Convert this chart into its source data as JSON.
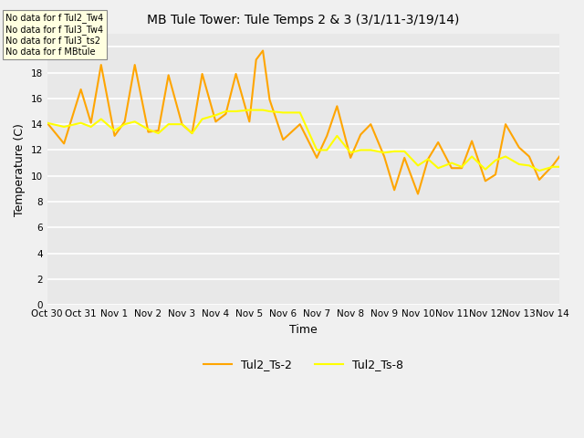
{
  "title": "MB Tule Tower: Tule Temps 2 & 3 (3/1/11-3/19/14)",
  "xlabel": "Time",
  "ylabel": "Temperature (C)",
  "fig_bg_color": "#f0f0f0",
  "plot_bg_color": "#e8e8e8",
  "line1_color": "#FFA500",
  "line2_color": "#FFFF00",
  "ylim": [
    0,
    21
  ],
  "yticks": [
    0,
    2,
    4,
    6,
    8,
    10,
    12,
    14,
    16,
    18,
    20
  ],
  "xtick_labels": [
    "Oct 30",
    "Oct 31",
    "Nov 1",
    "Nov 2",
    "Nov 3",
    "Nov 4",
    "Nov 5",
    "Nov 6",
    "Nov 7",
    "Nov 8",
    "Nov 9",
    "Nov 10",
    "Nov 11",
    "Nov 12",
    "Nov 13",
    "Nov 14"
  ],
  "legend_labels": [
    "Tul2_Ts-2",
    "Tul2_Ts-8"
  ],
  "annotations": [
    "No data for f Tul2_Tw4",
    "No data for f Tul3_Tw4",
    "No data for f Tul3_ts2",
    "No data for f MBtule"
  ],
  "ts2_x": [
    0,
    0.5,
    1,
    1.3,
    1.6,
    2,
    2.3,
    2.6,
    3,
    3.3,
    3.6,
    4,
    4.3,
    4.6,
    5,
    5.3,
    5.6,
    6,
    6.2,
    6.4,
    6.6,
    7,
    7.5,
    8,
    8.3,
    8.6,
    9,
    9.3,
    9.6,
    10,
    10.3,
    10.6,
    11,
    11.3,
    11.6,
    12,
    12.3,
    12.6,
    13,
    13.3,
    13.6,
    14,
    14.3,
    14.6,
    15,
    15.2
  ],
  "ts2_y": [
    14.1,
    12.5,
    16.7,
    14.1,
    18.6,
    13.1,
    14.2,
    18.6,
    13.4,
    13.5,
    17.8,
    14.0,
    13.3,
    17.9,
    14.2,
    14.8,
    17.9,
    14.2,
    19.0,
    19.7,
    15.9,
    12.8,
    14.0,
    11.4,
    13.1,
    15.4,
    11.4,
    13.2,
    14.0,
    11.5,
    8.9,
    11.4,
    8.6,
    11.3,
    12.6,
    10.6,
    10.6,
    12.7,
    9.6,
    10.1,
    14.0,
    12.2,
    11.5,
    9.7,
    10.8,
    11.5
  ],
  "ts8_x": [
    0,
    0.5,
    1,
    1.3,
    1.6,
    2,
    2.3,
    2.6,
    3,
    3.3,
    3.6,
    4,
    4.3,
    4.6,
    5,
    5.3,
    5.6,
    6,
    6.2,
    6.4,
    6.6,
    7,
    7.5,
    8,
    8.3,
    8.6,
    9,
    9.3,
    9.6,
    10,
    10.3,
    10.6,
    11,
    11.3,
    11.6,
    12,
    12.3,
    12.6,
    13,
    13.3,
    13.6,
    14,
    14.3,
    14.6,
    15,
    15.2
  ],
  "ts8_y": [
    14.1,
    13.8,
    14.1,
    13.8,
    14.4,
    13.5,
    14.0,
    14.2,
    13.6,
    13.3,
    14.0,
    14.0,
    13.3,
    14.4,
    14.7,
    15.0,
    15.0,
    15.1,
    15.1,
    15.1,
    15.0,
    14.9,
    14.9,
    12.0,
    12.0,
    13.1,
    11.8,
    12.0,
    12.0,
    11.8,
    11.9,
    11.9,
    10.8,
    11.3,
    10.6,
    11.0,
    10.7,
    11.5,
    10.5,
    11.2,
    11.5,
    10.9,
    10.8,
    10.4,
    10.7,
    10.7
  ]
}
